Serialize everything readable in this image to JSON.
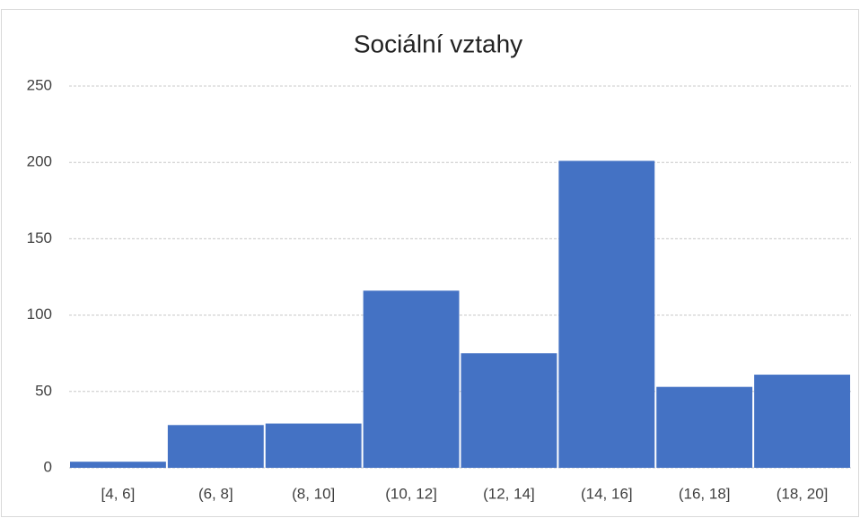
{
  "chart_data": {
    "type": "bar",
    "title": "Sociální vztahy",
    "categories": [
      "[4, 6]",
      "(6, 8]",
      "(8, 10]",
      "(10, 12]",
      "(12, 14]",
      "(14, 16]",
      "(16, 18]",
      "(18, 20]"
    ],
    "values": [
      4,
      28,
      29,
      116,
      75,
      201,
      53,
      61
    ],
    "color": "#4472c4",
    "ylim": [
      0,
      250
    ],
    "yticks": [
      0,
      50,
      100,
      150,
      200,
      250
    ],
    "grid": true
  }
}
